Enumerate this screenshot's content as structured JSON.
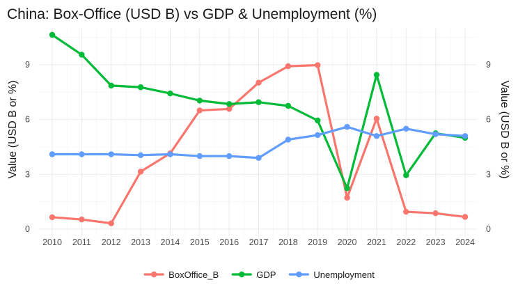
{
  "chart_data": {
    "type": "line",
    "title": "China: Box-Office (USD B) vs GDP & Unemployment (%)",
    "xlabel": "",
    "ylabel": "Value (USD B or %)",
    "ylabel_right": "Value (USD B or %)",
    "x": [
      2010,
      2011,
      2012,
      2013,
      2014,
      2015,
      2016,
      2017,
      2018,
      2019,
      2020,
      2021,
      2022,
      2023,
      2024
    ],
    "ylim": [
      0,
      11
    ],
    "yticks": [
      0,
      3,
      6,
      9
    ],
    "grid": true,
    "legend_position": "bottom",
    "series": [
      {
        "name": "BoxOffice_B",
        "color": "#F8766D",
        "values": [
          0.65,
          0.53,
          0.32,
          3.15,
          4.15,
          6.5,
          6.58,
          8.02,
          8.92,
          8.98,
          1.72,
          6.05,
          0.95,
          0.87,
          0.67
        ]
      },
      {
        "name": "GDP",
        "color": "#00BA38",
        "values": [
          10.64,
          9.55,
          7.86,
          7.77,
          7.43,
          7.04,
          6.85,
          6.95,
          6.75,
          5.95,
          2.24,
          8.45,
          2.95,
          5.25,
          5.0
        ]
      },
      {
        "name": "Unemployment",
        "color": "#619CFF",
        "values": [
          4.1,
          4.1,
          4.1,
          4.05,
          4.1,
          4.0,
          4.0,
          3.9,
          4.9,
          5.15,
          5.6,
          5.1,
          5.5,
          5.2,
          5.1
        ]
      }
    ]
  }
}
